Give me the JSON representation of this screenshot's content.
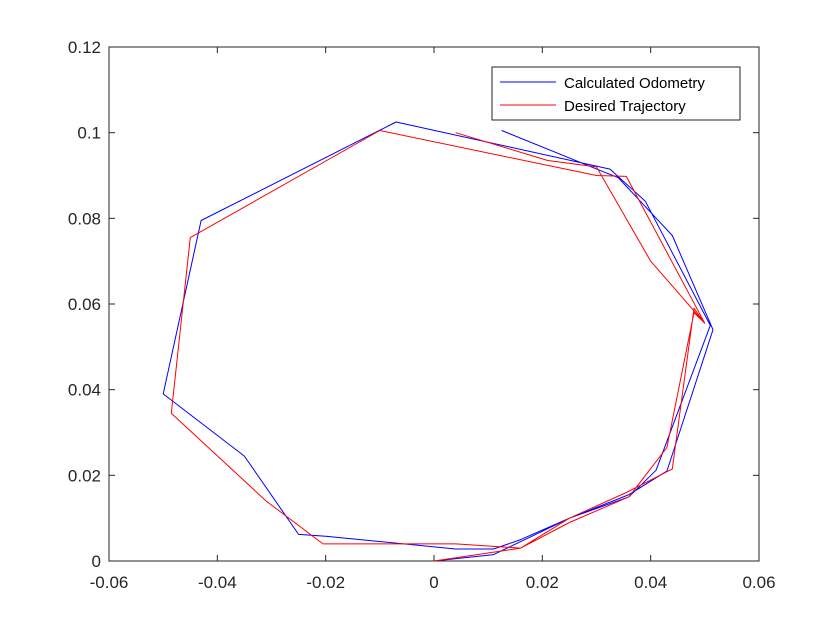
{
  "chart_data": {
    "type": "line",
    "title": "",
    "xlabel": "",
    "ylabel": "",
    "xlim": [
      -0.06,
      0.06
    ],
    "ylim": [
      0,
      0.12
    ],
    "xticks": [
      -0.06,
      -0.04,
      -0.02,
      0,
      0.02,
      0.04,
      0.06
    ],
    "yticks": [
      0,
      0.02,
      0.04,
      0.06,
      0.08,
      0.1,
      0.12
    ],
    "xtick_labels": [
      "-0.06",
      "-0.04",
      "-0.02",
      "0",
      "0.02",
      "0.04",
      "0.06"
    ],
    "ytick_labels": [
      "0",
      "0.02",
      "0.04",
      "0.06",
      "0.08",
      "0.1",
      "0.12"
    ],
    "grid": false,
    "legend": "top-right",
    "series": [
      {
        "name": "Calculated Odometry",
        "color": "#0000ff",
        "x": [
          0.0,
          0.011,
          0.025,
          0.036,
          0.041,
          0.051,
          0.051,
          0.039,
          0.0325,
          -0.007,
          -0.043,
          -0.05,
          -0.035,
          -0.025,
          -0.02,
          0.004,
          0.011,
          0.016,
          0.025,
          0.036,
          0.043,
          0.0515,
          0.044,
          0.034,
          0.031,
          0.0125
        ],
        "y": [
          0.0,
          0.0015,
          0.01,
          0.015,
          0.0212,
          0.055,
          0.055,
          0.084,
          0.0915,
          0.1025,
          0.0795,
          0.039,
          0.0245,
          0.0062,
          0.0058,
          0.0028,
          0.0028,
          0.005,
          0.01,
          0.0155,
          0.021,
          0.054,
          0.076,
          0.0895,
          0.091,
          0.1005
        ]
      },
      {
        "name": "Desired Trajectory",
        "color": "#ff0000",
        "x": [
          0.0,
          0.016,
          0.025,
          0.036,
          0.043,
          0.048,
          0.05,
          0.0355,
          0.03,
          -0.01,
          -0.045,
          -0.0485,
          -0.031,
          -0.0205,
          -0.01,
          0.004,
          0.016,
          0.025,
          0.0355,
          0.044,
          0.048,
          0.05,
          0.04,
          0.03,
          0.021,
          0.004
        ],
        "y": [
          0.0,
          0.003,
          0.009,
          0.015,
          0.0265,
          0.058,
          0.0555,
          0.0898,
          0.09,
          0.1005,
          0.0755,
          0.0345,
          0.014,
          0.004,
          0.004,
          0.004,
          0.003,
          0.01,
          0.016,
          0.0215,
          0.059,
          0.0555,
          0.07,
          0.092,
          0.0935,
          0.1
        ]
      }
    ]
  }
}
